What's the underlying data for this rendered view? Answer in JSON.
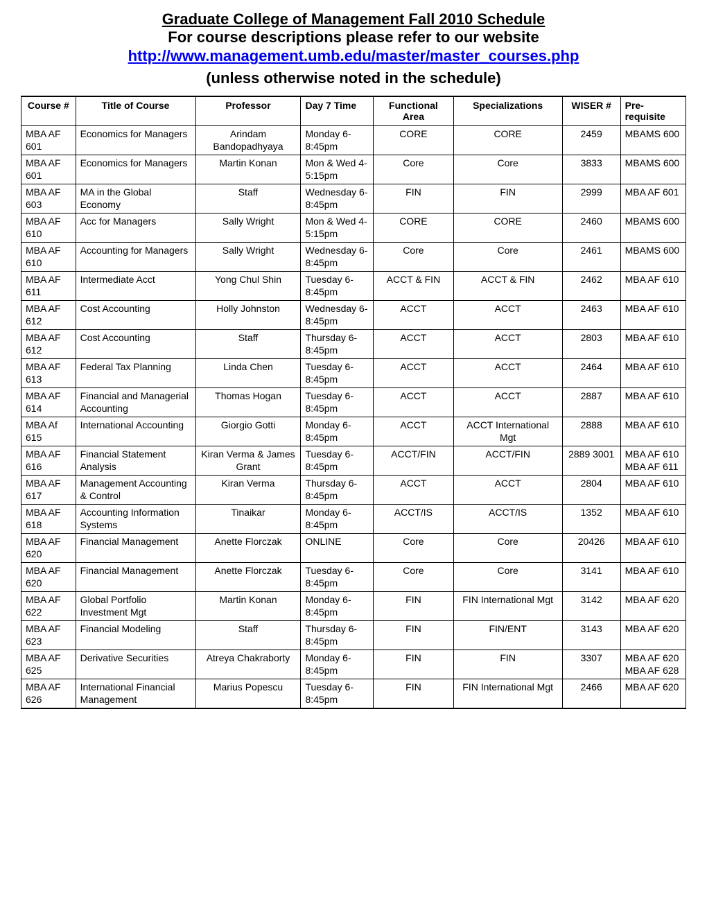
{
  "header": {
    "title": "Graduate College of Management Fall 2010 Schedule",
    "subtitle": "For course descriptions please refer to our website",
    "link_text": "http://www.management.umb.edu/master/master_courses.php",
    "note": "(unless otherwise noted in the schedule)"
  },
  "table": {
    "columns": [
      "Course #",
      "Title of Course",
      "Professor",
      "Day 7 Time",
      "Functional Area",
      "Specializations",
      "WISER #",
      "Pre-requisite"
    ],
    "rows": [
      [
        "MBA AF 601",
        "Economics for Managers",
        "Arindam Bandopadhyaya",
        "Monday 6-8:45pm",
        "CORE",
        "CORE",
        "2459",
        "MBAMS 600"
      ],
      [
        "MBA AF 601",
        "Economics for Managers",
        "Martin Konan",
        "Mon & Wed 4-5:15pm",
        "Core",
        "Core",
        "3833",
        "MBAMS 600"
      ],
      [
        "MBA AF 603",
        "MA in the Global Economy",
        "Staff",
        "Wednesday 6-8:45pm",
        "FIN",
        "FIN",
        "2999",
        "MBA AF 601"
      ],
      [
        "MBA AF 610",
        "Acc for Managers",
        "Sally Wright",
        "Mon & Wed 4-5:15pm",
        "CORE",
        "CORE",
        "2460",
        "MBAMS 600"
      ],
      [
        "MBA AF 610",
        "Accounting for Managers",
        "Sally Wright",
        "Wednesday 6-8:45pm",
        "Core",
        "Core",
        "2461",
        "MBAMS 600"
      ],
      [
        "MBA AF 611",
        "Intermediate Acct",
        "Yong Chul Shin",
        "Tuesday 6-8:45pm",
        "ACCT & FIN",
        "ACCT & FIN",
        "2462",
        "MBA AF 610"
      ],
      [
        "MBA AF 612",
        "Cost Accounting",
        "Holly Johnston",
        "Wednesday 6-8:45pm",
        "ACCT",
        "ACCT",
        "2463",
        "MBA AF 610"
      ],
      [
        "MBA AF 612",
        "Cost Accounting",
        "Staff",
        "Thursday 6-8:45pm",
        "ACCT",
        "ACCT",
        "2803",
        "MBA AF 610"
      ],
      [
        "MBA AF 613",
        "Federal Tax Planning",
        "Linda Chen",
        "Tuesday 6-8:45pm",
        "ACCT",
        "ACCT",
        "2464",
        "MBA AF 610"
      ],
      [
        "MBA AF 614",
        "Financial and Managerial Accounting",
        "Thomas Hogan",
        "Tuesday 6-8:45pm",
        "ACCT",
        "ACCT",
        "2887",
        "MBA AF 610"
      ],
      [
        "MBA Af 615",
        "International Accounting",
        "Giorgio Gotti",
        "Monday 6-8:45pm",
        "ACCT",
        "ACCT International Mgt",
        "2888",
        "MBA AF 610"
      ],
      [
        "MBA AF 616",
        "Financial Statement Analysis",
        "Kiran Verma & James Grant",
        "Tuesday 6-8:45pm",
        "ACCT/FIN",
        "ACCT/FIN",
        "2889 3001",
        "MBA AF 610 MBA AF 611"
      ],
      [
        "MBA AF 617",
        "Management Accounting & Control",
        "Kiran Verma",
        "Thursday 6-8:45pm",
        "ACCT",
        "ACCT",
        "2804",
        "MBA AF 610"
      ],
      [
        "MBA AF 618",
        "Accounting Information Systems",
        "Tinaikar",
        "Monday 6-8:45pm",
        "ACCT/IS",
        "ACCT/IS",
        "1352",
        "MBA AF 610"
      ],
      [
        "MBA AF 620",
        "Financial Management",
        "Anette Florczak",
        "ONLINE",
        "Core",
        "Core",
        "20426",
        "MBA AF 610"
      ],
      [
        "MBA AF 620",
        "Financial Management",
        "Anette Florczak",
        "Tuesday 6-8:45pm",
        "Core",
        "Core",
        "3141",
        "MBA AF 610"
      ],
      [
        "MBA AF 622",
        "Global Portfolio Investment Mgt",
        "Martin Konan",
        "Monday 6-8:45pm",
        "FIN",
        "FIN International Mgt",
        "3142",
        "MBA AF 620"
      ],
      [
        "MBA AF 623",
        "Financial Modeling",
        "Staff",
        "Thursday 6-8:45pm",
        "FIN",
        "FIN/ENT",
        "3143",
        "MBA AF 620"
      ],
      [
        "MBA AF 625",
        "Derivative Securities",
        "Atreya Chakraborty",
        "Monday 6-8:45pm",
        "FIN",
        "FIN",
        "3307",
        "MBA AF 620 MBA AF 628"
      ],
      [
        "MBA AF 626",
        "International Financial Management",
        "Marius Popescu",
        "Tuesday 6-8:45pm",
        "FIN",
        "FIN International Mgt",
        "2466",
        "MBA AF 620"
      ]
    ]
  }
}
